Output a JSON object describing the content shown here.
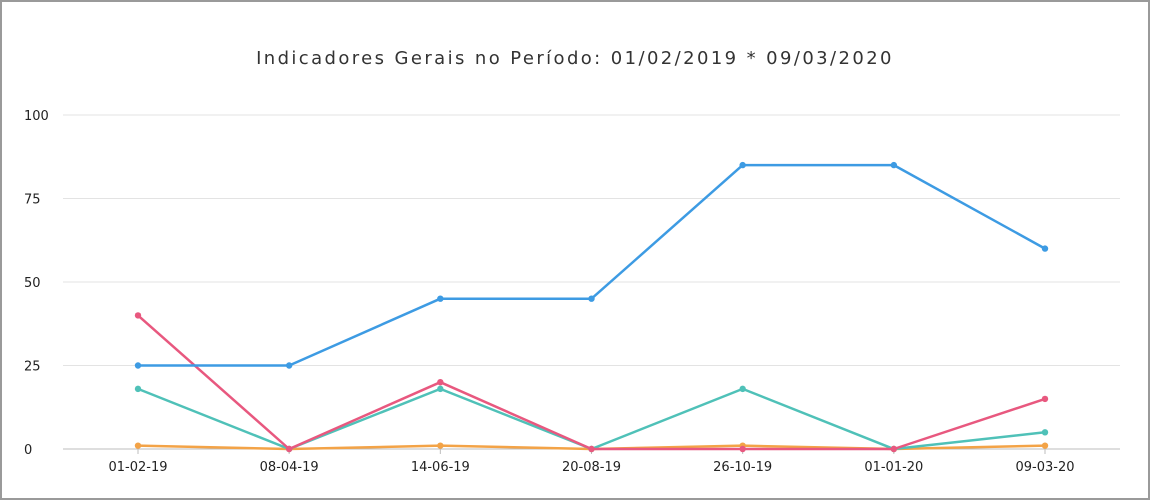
{
  "chart_data": {
    "type": "line",
    "title": "Indicadores Gerais no Período:  01/02/2019 * 09/03/2020",
    "xlabel": "",
    "ylabel": "",
    "categories": [
      "01-02-19",
      "08-04-19",
      "14-06-19",
      "20-08-19",
      "26-10-19",
      "01-01-20",
      "09-03-20"
    ],
    "ylim": [
      0,
      100
    ],
    "yticks": [
      0,
      25,
      50,
      75,
      100
    ],
    "grid": true,
    "legend": "none",
    "series": [
      {
        "color": "#3d9be3",
        "values": [
          25,
          25,
          45,
          45,
          85,
          85,
          60
        ]
      },
      {
        "color": "#e8587f",
        "values": [
          40,
          0,
          20,
          0,
          0,
          0,
          15
        ]
      },
      {
        "color": "#4fc1b8",
        "values": [
          18,
          0,
          18,
          0,
          18,
          0,
          5
        ]
      },
      {
        "color": "#f3a347",
        "values": [
          1,
          0,
          1,
          0,
          1,
          0,
          1
        ]
      }
    ]
  }
}
